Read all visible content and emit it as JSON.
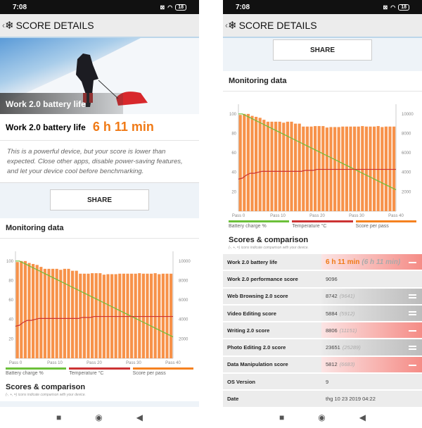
{
  "status": {
    "time": "7:08",
    "battery": "18"
  },
  "header": {
    "back": "‹",
    "title": "SCORE DETAILS"
  },
  "hero": {
    "caption": "Work 2.0 battery life"
  },
  "result": {
    "label": "Work 2.0 battery life",
    "value": "6 h 11 min"
  },
  "description": "This is a powerful device, but your score is lower than expected. Close other apps, disable power-saving features, and let your device cool before benchmarking.",
  "share_label": "SHARE",
  "monitoring": {
    "title": "Monitoring data"
  },
  "chart_data": {
    "type": "bar+line",
    "x_ticks": [
      "Pass 0",
      "Pass 10",
      "Pass 20",
      "Pass 30",
      "Pass 40"
    ],
    "left_ticks": [
      100,
      80,
      60,
      40,
      20
    ],
    "right_ticks": [
      10000,
      8000,
      6000,
      4000,
      2000
    ],
    "left_ylim": [
      0,
      110
    ],
    "right_ylim": [
      0,
      11000
    ],
    "series": [
      {
        "name": "Battery charge %",
        "type": "line",
        "axis": "left",
        "color": "#6cc03a",
        "values": [
          100,
          100,
          98,
          96,
          94,
          92,
          90,
          88,
          86,
          84,
          82,
          80,
          78,
          76,
          74,
          72,
          70,
          68,
          66,
          64,
          62,
          60,
          58,
          56,
          54,
          52,
          50,
          48,
          46,
          44,
          42,
          40,
          38,
          36,
          34,
          32,
          30,
          28,
          26,
          24,
          22
        ]
      },
      {
        "name": "Temperature °C",
        "type": "line",
        "axis": "left",
        "color": "#cc3333",
        "values": [
          33,
          34,
          37,
          39,
          39,
          40,
          41,
          41,
          41,
          41,
          41,
          41,
          41,
          41,
          41,
          41,
          41,
          42,
          42,
          42,
          43,
          43,
          43,
          43,
          43,
          43,
          43,
          43,
          43,
          43,
          43,
          43,
          43,
          43,
          43,
          43,
          43,
          43,
          43,
          43,
          43
        ]
      },
      {
        "name": "Score per pass",
        "type": "bar",
        "axis": "right",
        "color": "#f58220",
        "values": [
          9900,
          10000,
          10000,
          9800,
          9700,
          9600,
          9400,
          9200,
          9200,
          9200,
          9200,
          9100,
          9200,
          9200,
          9000,
          9000,
          8700,
          8700,
          8700,
          8750,
          8750,
          8750,
          8600,
          8650,
          8650,
          8650,
          8700,
          8700,
          8700,
          8700,
          8700,
          8750,
          8700,
          8700,
          8700,
          8750,
          8650,
          8700,
          8700,
          8700
        ]
      }
    ]
  },
  "scores": {
    "title": "Scores & comparison",
    "note": "(-, +, =) icons indicate comparison with your device.",
    "rows": [
      {
        "label": "Work 2.0 battery life",
        "value": "6 h 11 min",
        "ref": "(6 h 11 min)",
        "style": "red orange",
        "icon": "minus"
      },
      {
        "label": "Work 2.0 performance score",
        "value": "9096",
        "ref": "",
        "style": "",
        "icon": ""
      },
      {
        "label": "Web Browsing 2.0 score",
        "value": "8742",
        "ref": "(9641)",
        "style": "gray",
        "icon": "eq"
      },
      {
        "label": "Video Editing score",
        "value": "5884",
        "ref": "(5912)",
        "style": "gray",
        "icon": "eq"
      },
      {
        "label": "Writing 2.0 score",
        "value": "8806",
        "ref": "(11151)",
        "style": "red",
        "icon": "minus"
      },
      {
        "label": "Photo Editing 2.0 score",
        "value": "23651",
        "ref": "(25289)",
        "style": "gray",
        "icon": "eq"
      },
      {
        "label": "Data Manipulation score",
        "value": "5812",
        "ref": "(6683)",
        "style": "red",
        "icon": "minus"
      },
      {
        "label": "OS Version",
        "value": "9",
        "ref": "",
        "style": "",
        "icon": ""
      },
      {
        "label": "Date",
        "value": "thg 10 23 2019 04:22",
        "ref": "",
        "style": "",
        "icon": ""
      }
    ]
  }
}
